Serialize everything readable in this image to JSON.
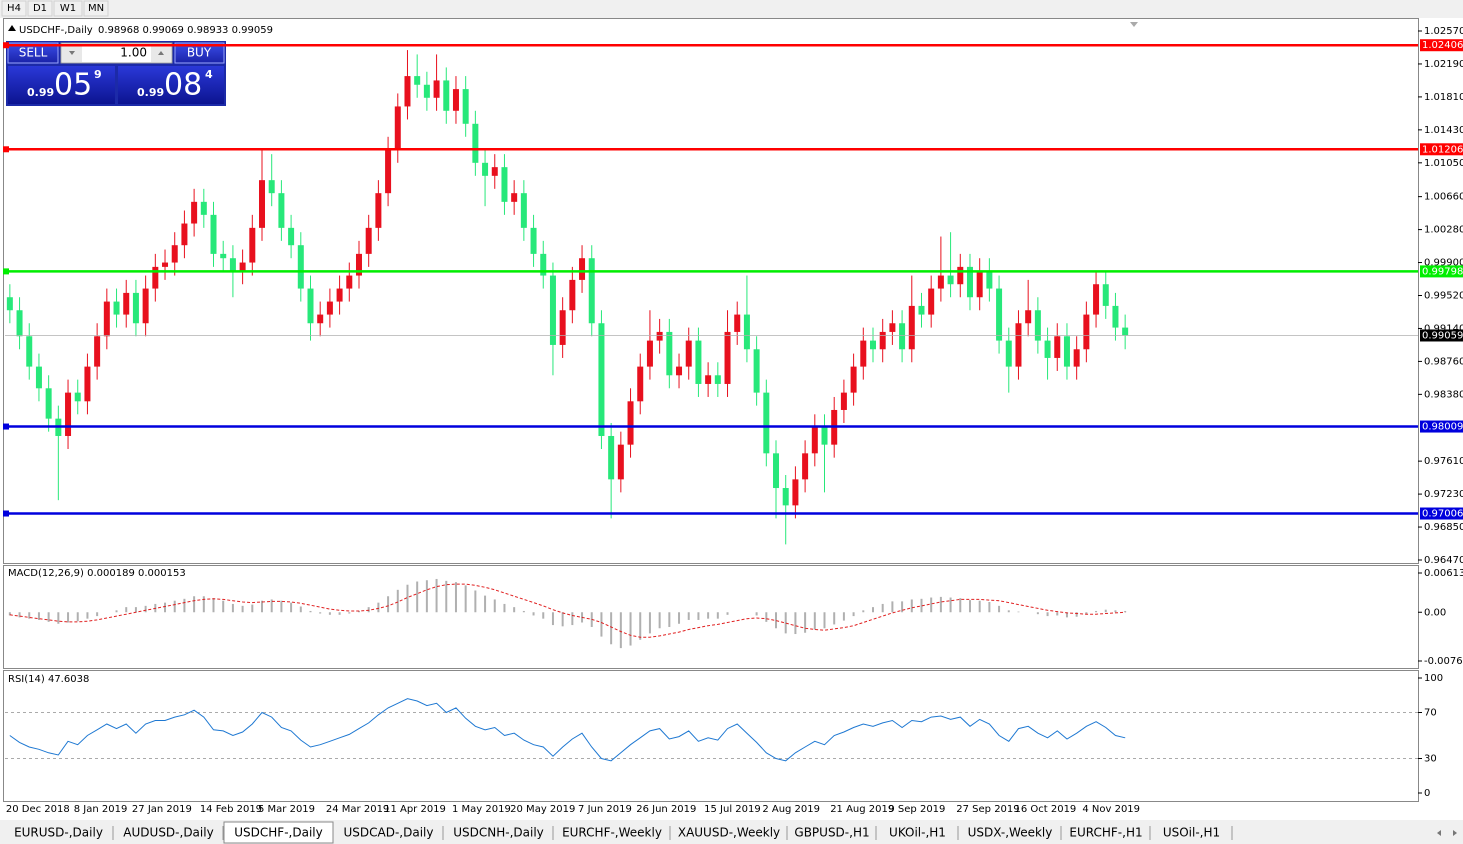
{
  "toolbar": {
    "timeframes": [
      "H4",
      "D1",
      "W1",
      "MN"
    ]
  },
  "trade_panel": {
    "sell": "SELL",
    "buy": "BUY",
    "lot": "1.00",
    "sell_price": {
      "prefix": "0.99",
      "big": "05",
      "sup": "9"
    },
    "buy_price": {
      "prefix": "0.99",
      "big": "08",
      "sup": "4"
    }
  },
  "tabs": [
    "EURUSD-,Daily",
    "AUDUSD-,Daily",
    "USDCHF-,Daily",
    "USDCAD-,Daily",
    "USDCNH-,Daily",
    "EURCHF-,Weekly",
    "XAUUSD-,Weekly",
    "GBPUSD-,H1",
    "UKOil-,H1",
    "USDX-,Weekly",
    "EURCHF-,H1",
    "USOil-,H1"
  ],
  "active_tab": "USDCHF-,Daily",
  "chart_data": {
    "type": "candlestick",
    "title": "USDCHF-,Daily",
    "ohlc_text": "0.98968 0.99069 0.98933 0.99059",
    "up_color": "#e8101e",
    "down_color": "#27e87a",
    "categories": [
      "20 Dec 2018",
      null,
      null,
      null,
      null,
      null,
      null,
      "8 Jan 2019",
      null,
      null,
      null,
      null,
      null,
      "27 Jan 2019",
      null,
      null,
      null,
      null,
      null,
      null,
      "14 Feb 2019",
      null,
      null,
      null,
      null,
      null,
      "5 Mar 2019",
      null,
      null,
      null,
      null,
      null,
      null,
      "24 Mar 2019",
      null,
      null,
      null,
      null,
      null,
      "11 Apr 2019",
      null,
      null,
      null,
      null,
      null,
      null,
      "1 May 2019",
      null,
      null,
      null,
      null,
      null,
      "20 May 2019",
      null,
      null,
      null,
      null,
      null,
      null,
      "7 Jun 2019",
      null,
      null,
      null,
      null,
      null,
      "26 Jun 2019",
      null,
      null,
      null,
      null,
      null,
      null,
      "15 Jul 2019",
      null,
      null,
      null,
      null,
      null,
      "2 Aug 2019",
      null,
      null,
      null,
      null,
      null,
      null,
      "21 Aug 2019",
      null,
      null,
      null,
      null,
      null,
      "9 Sep 2019",
      null,
      null,
      null,
      null,
      null,
      null,
      "27 Sep 2019",
      null,
      null,
      null,
      null,
      null,
      "16 Oct 2019",
      null,
      null,
      null,
      null,
      null,
      null,
      "4 Nov 2019",
      null,
      null,
      null,
      null
    ],
    "open": [
      0.995,
      0.9935,
      0.9905,
      0.987,
      0.9845,
      0.981,
      0.979,
      0.984,
      0.983,
      0.987,
      0.9905,
      0.9945,
      0.993,
      0.9955,
      0.992,
      0.996,
      0.9985,
      0.999,
      1.001,
      1.0035,
      1.006,
      1.0045,
      1.0,
      0.9995,
      0.998,
      0.999,
      1.003,
      1.0085,
      1.007,
      1.003,
      1.001,
      0.996,
      0.992,
      0.993,
      0.9945,
      0.996,
      0.9975,
      1.0,
      1.003,
      1.007,
      1.012,
      1.017,
      1.0205,
      1.0195,
      1.018,
      1.02,
      1.0165,
      1.019,
      1.015,
      1.0105,
      1.009,
      1.01,
      1.006,
      1.007,
      1.003,
      1.0,
      0.9975,
      0.9895,
      0.9935,
      0.997,
      0.9995,
      0.992,
      0.979,
      0.974,
      0.978,
      0.983,
      0.987,
      0.99,
      0.991,
      0.986,
      0.987,
      0.99,
      0.985,
      0.986,
      0.985,
      0.991,
      0.993,
      0.989,
      0.984,
      0.977,
      0.973,
      0.971,
      0.974,
      0.977,
      0.98,
      0.978,
      0.982,
      0.984,
      0.987,
      0.99,
      0.989,
      0.991,
      0.992,
      0.989,
      0.994,
      0.993,
      0.996,
      0.9975,
      0.9965,
      0.9985,
      0.995,
      0.998,
      0.996,
      0.99,
      0.987,
      0.992,
      0.9935,
      0.99,
      0.988,
      0.9905,
      0.987,
      0.989,
      0.993,
      0.9965,
      0.994,
      0.9915
    ],
    "high": [
      0.9965,
      0.995,
      0.992,
      0.9885,
      0.986,
      0.9825,
      0.9855,
      0.9855,
      0.9885,
      0.992,
      0.996,
      0.996,
      0.997,
      0.997,
      0.9975,
      1.0,
      1.0005,
      1.0025,
      1.005,
      1.0075,
      1.0075,
      1.006,
      1.0015,
      1.001,
      1.0005,
      1.0045,
      1.012,
      1.0115,
      1.0085,
      1.0045,
      1.0025,
      0.9975,
      0.9945,
      0.996,
      0.9975,
      0.999,
      1.0015,
      1.0045,
      1.0085,
      1.0135,
      1.0185,
      1.0235,
      1.023,
      1.021,
      1.023,
      1.0215,
      1.0205,
      1.0205,
      1.0165,
      1.012,
      1.0115,
      1.0115,
      1.0085,
      1.0085,
      1.0045,
      1.0015,
      0.999,
      0.995,
      0.9985,
      1.001,
      1.001,
      0.9935,
      0.9805,
      0.9795,
      0.9845,
      0.9885,
      0.9935,
      0.9925,
      0.9925,
      0.9885,
      0.9915,
      0.9915,
      0.9875,
      0.9875,
      0.9935,
      0.9945,
      0.9975,
      0.9905,
      0.9855,
      0.9785,
      0.9745,
      0.9755,
      0.9785,
      0.9815,
      0.9815,
      0.9835,
      0.9855,
      0.9885,
      0.9915,
      0.9915,
      0.9925,
      0.9935,
      0.9935,
      0.9975,
      0.9955,
      0.9975,
      1.002,
      1.0025,
      1.0,
      1.0,
      0.9995,
      0.9995,
      0.9975,
      0.9915,
      0.9935,
      0.997,
      0.995,
      0.9915,
      0.992,
      0.992,
      0.9905,
      0.9945,
      0.998,
      0.998,
      0.9955,
      0.993
    ],
    "low": [
      0.992,
      0.989,
      0.9855,
      0.983,
      0.9795,
      0.9716,
      0.9775,
      0.9815,
      0.9815,
      0.9855,
      0.989,
      0.9915,
      0.9915,
      0.9905,
      0.9905,
      0.9945,
      0.997,
      0.9975,
      0.9995,
      1.002,
      1.003,
      0.9985,
      0.998,
      0.995,
      0.9965,
      0.9975,
      1.0015,
      1.0055,
      1.0015,
      0.9995,
      0.9945,
      0.99,
      0.9905,
      0.9915,
      0.993,
      0.9945,
      0.996,
      0.9985,
      1.0015,
      1.0055,
      1.0105,
      1.0155,
      1.018,
      1.0165,
      1.0165,
      1.015,
      1.015,
      1.0135,
      1.009,
      1.0055,
      1.0075,
      1.0045,
      1.0045,
      1.0015,
      0.9985,
      0.996,
      0.986,
      0.988,
      0.992,
      0.9955,
      0.9905,
      0.9775,
      0.9695,
      0.9725,
      0.9765,
      0.9815,
      0.9855,
      0.9885,
      0.9845,
      0.9845,
      0.9855,
      0.9835,
      0.9835,
      0.9835,
      0.9835,
      0.9895,
      0.9875,
      0.9825,
      0.9755,
      0.9695,
      0.9665,
      0.9695,
      0.9725,
      0.9755,
      0.9725,
      0.9765,
      0.9805,
      0.9825,
      0.9855,
      0.9875,
      0.9875,
      0.9895,
      0.9875,
      0.9875,
      0.9915,
      0.9915,
      0.9945,
      0.995,
      0.995,
      0.9935,
      0.9935,
      0.9945,
      0.9885,
      0.984,
      0.9855,
      0.9905,
      0.9885,
      0.9855,
      0.9865,
      0.9855,
      0.9855,
      0.9875,
      0.9915,
      0.9925,
      0.99,
      0.989
    ],
    "close": [
      0.9935,
      0.9905,
      0.987,
      0.9845,
      0.981,
      0.979,
      0.984,
      0.983,
      0.987,
      0.9905,
      0.9945,
      0.993,
      0.9955,
      0.992,
      0.996,
      0.9985,
      0.999,
      1.001,
      1.0035,
      1.006,
      1.0045,
      1.0,
      0.9995,
      0.998,
      0.999,
      1.003,
      1.0085,
      1.007,
      1.003,
      1.001,
      0.996,
      0.992,
      0.993,
      0.9945,
      0.996,
      0.9975,
      1.0,
      1.003,
      1.007,
      1.012,
      1.017,
      1.0205,
      1.0195,
      1.018,
      1.02,
      1.0165,
      1.019,
      1.015,
      1.0105,
      1.009,
      1.01,
      1.006,
      1.007,
      1.003,
      1.0,
      0.9975,
      0.9895,
      0.9935,
      0.997,
      0.9995,
      0.992,
      0.979,
      0.974,
      0.978,
      0.983,
      0.987,
      0.99,
      0.991,
      0.986,
      0.987,
      0.99,
      0.985,
      0.986,
      0.985,
      0.991,
      0.993,
      0.989,
      0.984,
      0.977,
      0.973,
      0.971,
      0.974,
      0.977,
      0.98,
      0.978,
      0.982,
      0.984,
      0.987,
      0.99,
      0.989,
      0.991,
      0.992,
      0.989,
      0.994,
      0.993,
      0.996,
      0.9975,
      0.9965,
      0.9985,
      0.995,
      0.998,
      0.996,
      0.99,
      0.987,
      0.992,
      0.9935,
      0.99,
      0.988,
      0.9905,
      0.987,
      0.989,
      0.993,
      0.9965,
      0.994,
      0.9915,
      0.9906
    ],
    "ylim": [
      0.9647,
      1.0257
    ],
    "yticks": [
      {
        "value": 1.0257,
        "label": "1.02570"
      },
      {
        "value": 1.0219,
        "label": "1.02190"
      },
      {
        "value": 1.0181,
        "label": "1.01810"
      },
      {
        "value": 1.0143,
        "label": "1.01430"
      },
      {
        "value": 1.0105,
        "label": "1.01050"
      },
      {
        "value": 1.0066,
        "label": "1.00660"
      },
      {
        "value": 1.0028,
        "label": "1.00280"
      },
      {
        "value": 0.999,
        "label": "0.99900"
      },
      {
        "value": 0.9952,
        "label": "0.99520"
      },
      {
        "value": 0.9914,
        "label": "0.99140"
      },
      {
        "value": 0.9876,
        "label": "0.98760"
      },
      {
        "value": 0.9838,
        "label": "0.98380"
      },
      {
        "value": 0.9761,
        "label": "0.97610"
      },
      {
        "value": 0.9723,
        "label": "0.97230"
      },
      {
        "value": 0.9685,
        "label": "0.96850"
      },
      {
        "value": 0.9647,
        "label": "0.96470"
      }
    ],
    "hlines": [
      {
        "value": 1.02406,
        "color": "#ff0000"
      },
      {
        "value": 1.01206,
        "color": "#ff0000"
      },
      {
        "value": 0.99798,
        "color": "#00ee00"
      },
      {
        "value": 0.98009,
        "color": "#0000dd"
      },
      {
        "value": 0.97006,
        "color": "#0000dd"
      }
    ],
    "last_price": 0.99059,
    "macd": {
      "label": "MACD(12,26,9) 0.000189 0.000153",
      "ylim": [
        -0.007612,
        0.00613
      ],
      "yticks": [
        0.00613,
        {
          "value": 0,
          "label": "0.00"
        },
        -0.007612
      ],
      "hist_color": "#b0b0b0",
      "signal_color": "#e02020",
      "histogram": [
        -0.0005,
        -0.0008,
        -0.001,
        -0.0012,
        -0.0015,
        -0.0018,
        -0.0016,
        -0.0014,
        -0.001,
        -0.0006,
        0,
        0.0003,
        0.0008,
        0.0008,
        0.001,
        0.0013,
        0.0015,
        0.0018,
        0.0021,
        0.0025,
        0.0025,
        0.0022,
        0.0018,
        0.0013,
        0.001,
        0.0012,
        0.0018,
        0.002,
        0.0018,
        0.0015,
        0.0009,
        0.0002,
        -0.0002,
        -0.0004,
        -0.0004,
        -0.0002,
        0.0002,
        0.0008,
        0.0015,
        0.0025,
        0.0035,
        0.0043,
        0.0048,
        0.005,
        0.0052,
        0.0049,
        0.0047,
        0.0042,
        0.0034,
        0.0026,
        0.002,
        0.0013,
        0.0008,
        0.0002,
        -0.0005,
        -0.001,
        -0.002,
        -0.0022,
        -0.002,
        -0.0016,
        -0.0023,
        -0.0038,
        -0.005,
        -0.0056,
        -0.0052,
        -0.0043,
        -0.0033,
        -0.0025,
        -0.0023,
        -0.0018,
        -0.0012,
        -0.0012,
        -0.001,
        -0.001,
        -0.0004,
        0,
        0,
        -0.0005,
        -0.0015,
        -0.0025,
        -0.0033,
        -0.0034,
        -0.0032,
        -0.0027,
        -0.0025,
        -0.0019,
        -0.0013,
        -0.0006,
        0.0003,
        0.0008,
        0.0013,
        0.0017,
        0.0017,
        0.002,
        0.0021,
        0.0023,
        0.0024,
        0.0023,
        0.0022,
        0.0019,
        0.0018,
        0.0016,
        0.001,
        0.0003,
        0.0001,
        0,
        -0.0003,
        -0.0006,
        -0.0005,
        -0.0008,
        -0.0007,
        -0.0003,
        0.0002,
        0.0004,
        0.0003,
        0.0002
      ],
      "signal": [
        -0.0004,
        -0.0006,
        -0.0008,
        -0.001,
        -0.0012,
        -0.0014,
        -0.0015,
        -0.0015,
        -0.0014,
        -0.0012,
        -0.0009,
        -0.0006,
        -0.0003,
        0,
        0.0003,
        0.0006,
        0.0009,
        0.0012,
        0.0015,
        0.0018,
        0.002,
        0.0021,
        0.002,
        0.0018,
        0.0016,
        0.0015,
        0.0016,
        0.0017,
        0.0017,
        0.0016,
        0.0014,
        0.0011,
        0.0008,
        0.0005,
        0.0003,
        0.0002,
        0.0002,
        0.0003,
        0.0006,
        0.001,
        0.0016,
        0.0023,
        0.0029,
        0.0035,
        0.004,
        0.0043,
        0.0044,
        0.0044,
        0.0042,
        0.0039,
        0.0035,
        0.003,
        0.0025,
        0.002,
        0.0015,
        0.001,
        0.0004,
        -0.0001,
        -0.0005,
        -0.0008,
        -0.0011,
        -0.0016,
        -0.0023,
        -0.003,
        -0.0036,
        -0.0039,
        -0.0039,
        -0.0037,
        -0.0034,
        -0.0031,
        -0.0027,
        -0.0024,
        -0.0021,
        -0.0019,
        -0.0016,
        -0.0013,
        -0.001,
        -0.0009,
        -0.001,
        -0.0013,
        -0.0017,
        -0.0021,
        -0.0025,
        -0.0027,
        -0.0028,
        -0.0026,
        -0.0024,
        -0.0021,
        -0.0016,
        -0.0011,
        -0.0006,
        -0.0001,
        0.0003,
        0.0007,
        0.001,
        0.0013,
        0.0016,
        0.0018,
        0.002,
        0.002,
        0.002,
        0.0019,
        0.0018,
        0.0015,
        0.0012,
        0.0009,
        0.0006,
        0.0003,
        0.0001,
        -0.0001,
        -0.0002,
        -0.0003,
        -0.0003,
        -0.0002,
        -0.0001,
        0
      ]
    },
    "rsi": {
      "label": "RSI(14) 47.6038",
      "ylim": [
        0,
        100
      ],
      "yticks": [
        100,
        70,
        30,
        0
      ],
      "levels": [
        70,
        30
      ],
      "color": "#1e78d2",
      "values": [
        50,
        44,
        40,
        38,
        35,
        33,
        45,
        42,
        50,
        55,
        60,
        56,
        60,
        52,
        60,
        63,
        63,
        66,
        68,
        72,
        66,
        55,
        54,
        50,
        53,
        60,
        70,
        66,
        57,
        54,
        46,
        40,
        42,
        45,
        48,
        51,
        56,
        61,
        68,
        74,
        78,
        82,
        80,
        76,
        78,
        70,
        74,
        65,
        58,
        55,
        57,
        50,
        52,
        46,
        42,
        40,
        32,
        40,
        47,
        52,
        40,
        30,
        28,
        35,
        42,
        48,
        54,
        56,
        47,
        49,
        54,
        45,
        48,
        46,
        56,
        60,
        52,
        44,
        35,
        30,
        28,
        35,
        40,
        45,
        42,
        50,
        53,
        57,
        60,
        58,
        61,
        63,
        57,
        63,
        62,
        66,
        67,
        64,
        66,
        58,
        64,
        60,
        50,
        45,
        56,
        58,
        52,
        48,
        54,
        47,
        52,
        58,
        62,
        57,
        50,
        48
      ]
    }
  }
}
